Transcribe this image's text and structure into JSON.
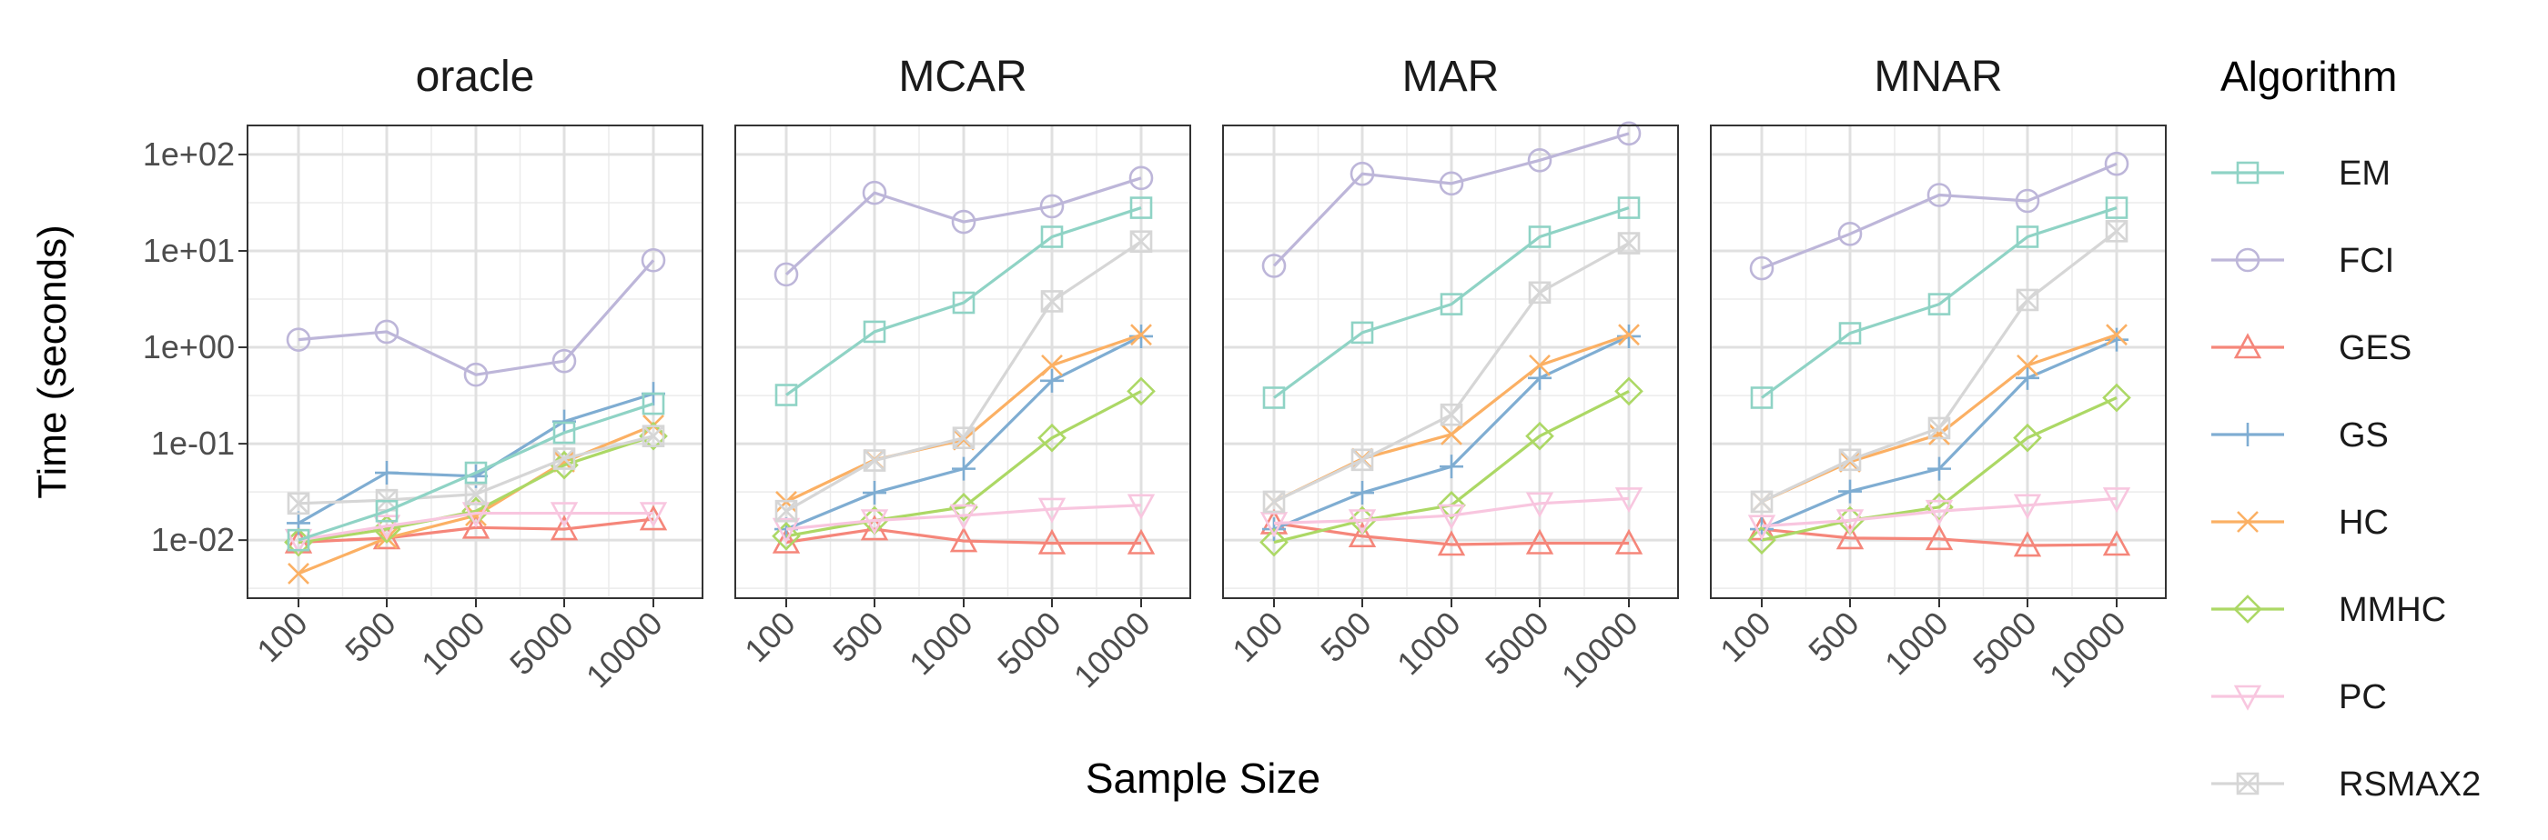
{
  "chart_data": {
    "type": "line",
    "y_scale": "log",
    "grid": true,
    "legend_position": "right",
    "title": "",
    "xlabel": "Sample Size",
    "ylabel": "Time (seconds)",
    "x_categories": [
      "100",
      "500",
      "1000",
      "5000",
      "10000"
    ],
    "y_ticks": [
      {
        "value": 0.01,
        "label": "1e-02"
      },
      {
        "value": 0.1,
        "label": "1e-01"
      },
      {
        "value": 1,
        "label": "1e+00"
      },
      {
        "value": 10,
        "label": "1e+01"
      },
      {
        "value": 100,
        "label": "1e+02"
      }
    ],
    "y_range": [
      0.0025,
      200
    ],
    "legend_title": "Algorithm",
    "algorithms": [
      {
        "name": "EM",
        "color": "#8fd3c5",
        "marker": "square"
      },
      {
        "name": "FCI",
        "color": "#bdb6d9",
        "marker": "circle"
      },
      {
        "name": "GES",
        "color": "#f5867a",
        "marker": "triangle-up"
      },
      {
        "name": "GS",
        "color": "#7fadd2",
        "marker": "plus"
      },
      {
        "name": "HC",
        "color": "#fbb064",
        "marker": "x"
      },
      {
        "name": "MMHC",
        "color": "#acd865",
        "marker": "diamond"
      },
      {
        "name": "PC",
        "color": "#f8c6df",
        "marker": "triangle-down"
      },
      {
        "name": "RSMAX2",
        "color": "#d6d6d6",
        "marker": "square-x"
      }
    ],
    "panels": [
      {
        "title": "oracle",
        "series": [
          {
            "name": "FCI",
            "values": [
              1.2,
              1.45,
              0.52,
              0.72,
              8.0
            ]
          },
          {
            "name": "GES",
            "values": [
              0.0095,
              0.0105,
              0.0135,
              0.013,
              0.0165
            ]
          },
          {
            "name": "GS",
            "values": [
              0.015,
              0.05,
              0.046,
              0.17,
              0.33
            ]
          },
          {
            "name": "HC",
            "values": [
              0.0045,
              0.0105,
              0.018,
              0.065,
              0.155
            ]
          },
          {
            "name": "MMHC",
            "values": [
              0.0095,
              0.013,
              0.02,
              0.06,
              0.12
            ]
          },
          {
            "name": "PC",
            "values": [
              0.01,
              0.014,
              0.019,
              0.019,
              0.019
            ]
          },
          {
            "name": "RSMAX2",
            "values": [
              0.024,
              0.026,
              0.03,
              0.07,
              0.12
            ]
          },
          {
            "name": "EM",
            "values": [
              0.01,
              0.02,
              0.05,
              0.13,
              0.26
            ]
          }
        ]
      },
      {
        "title": "MCAR",
        "series": [
          {
            "name": "EM",
            "values": [
              0.32,
              1.45,
              2.9,
              14.0,
              28.0
            ]
          },
          {
            "name": "FCI",
            "values": [
              5.7,
              40.0,
              20.0,
              29.0,
              57.0
            ]
          },
          {
            "name": "GES",
            "values": [
              0.0095,
              0.013,
              0.0098,
              0.0093,
              0.0093
            ]
          },
          {
            "name": "GS",
            "values": [
              0.013,
              0.031,
              0.055,
              0.45,
              1.3
            ]
          },
          {
            "name": "HC",
            "values": [
              0.025,
              0.068,
              0.11,
              0.65,
              1.35
            ]
          },
          {
            "name": "MMHC",
            "values": [
              0.011,
              0.016,
              0.022,
              0.115,
              0.35
            ]
          },
          {
            "name": "PC",
            "values": [
              0.013,
              0.016,
              0.018,
              0.021,
              0.023
            ]
          },
          {
            "name": "RSMAX2",
            "values": [
              0.02,
              0.067,
              0.115,
              3.0,
              12.5
            ]
          }
        ]
      },
      {
        "title": "MAR",
        "series": [
          {
            "name": "EM",
            "values": [
              0.3,
              1.42,
              2.8,
              14.0,
              28.0
            ]
          },
          {
            "name": "FCI",
            "values": [
              7.0,
              63.0,
              50.0,
              87.0,
              165.0
            ]
          },
          {
            "name": "GES",
            "values": [
              0.015,
              0.011,
              0.009,
              0.0093,
              0.0093
            ]
          },
          {
            "name": "GS",
            "values": [
              0.013,
              0.031,
              0.058,
              0.48,
              1.3
            ]
          },
          {
            "name": "HC",
            "values": [
              0.025,
              0.07,
              0.125,
              0.65,
              1.35
            ]
          },
          {
            "name": "MMHC",
            "values": [
              0.0095,
              0.016,
              0.023,
              0.12,
              0.35
            ]
          },
          {
            "name": "PC",
            "values": [
              0.015,
              0.016,
              0.018,
              0.024,
              0.027
            ]
          },
          {
            "name": "RSMAX2",
            "values": [
              0.025,
              0.068,
              0.2,
              3.7,
              12.0
            ]
          }
        ]
      },
      {
        "title": "MNAR",
        "series": [
          {
            "name": "EM",
            "values": [
              0.3,
              1.4,
              2.8,
              14.0,
              28.0
            ]
          },
          {
            "name": "FCI",
            "values": [
              6.6,
              15.0,
              38.0,
              33.0,
              80.0
            ]
          },
          {
            "name": "GES",
            "values": [
              0.013,
              0.0105,
              0.0103,
              0.0088,
              0.009
            ]
          },
          {
            "name": "GS",
            "values": [
              0.013,
              0.032,
              0.055,
              0.48,
              1.2
            ]
          },
          {
            "name": "HC",
            "values": [
              0.025,
              0.065,
              0.125,
              0.65,
              1.35
            ]
          },
          {
            "name": "MMHC",
            "values": [
              0.01,
              0.016,
              0.022,
              0.115,
              0.3
            ]
          },
          {
            "name": "PC",
            "values": [
              0.014,
              0.016,
              0.02,
              0.023,
              0.027
            ]
          },
          {
            "name": "RSMAX2",
            "values": [
              0.025,
              0.068,
              0.145,
              3.1,
              16.0
            ]
          }
        ]
      }
    ]
  }
}
